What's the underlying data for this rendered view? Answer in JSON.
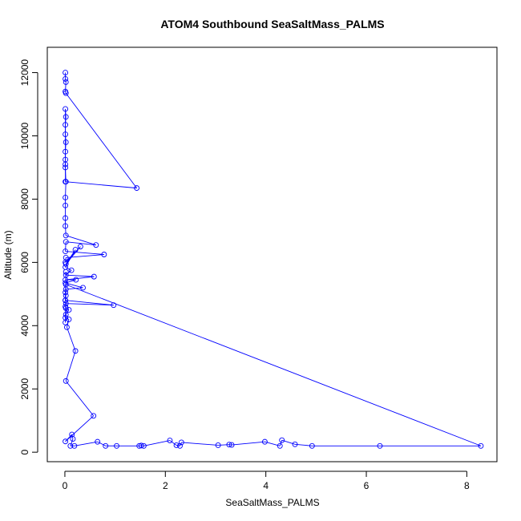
{
  "chart_data": {
    "type": "scatter",
    "title": "ATOM4 Southbound SeaSaltMass_PALMS",
    "xlabel": "SeaSaltMass_PALMS",
    "ylabel": "Altitude (m)",
    "xlim": [
      -0.35,
      8.6
    ],
    "ylim": [
      -300,
      12800
    ],
    "x_ticks": [
      0,
      2,
      4,
      6,
      8
    ],
    "y_ticks": [
      0,
      2000,
      4000,
      6000,
      8000,
      10000,
      12000
    ],
    "grid": false,
    "style": "points connected by lines",
    "colors": {
      "series": "#0000ff",
      "frame": "#000000",
      "background": "#ffffff"
    },
    "series": [
      {
        "points": [
          [
            0.01,
            12000
          ],
          [
            0.01,
            11800
          ],
          [
            0.02,
            11700
          ],
          [
            0.01,
            11400
          ],
          [
            0.02,
            11350
          ],
          [
            1.43,
            8350
          ],
          [
            0.01,
            8550
          ],
          [
            0.01,
            10850
          ],
          [
            0.02,
            10600
          ],
          [
            0.01,
            10350
          ],
          [
            0.01,
            10050
          ],
          [
            0.02,
            9800
          ],
          [
            0.01,
            9500
          ],
          [
            0.01,
            9250
          ],
          [
            0.01,
            9100
          ],
          [
            0.01,
            9000
          ],
          [
            0.02,
            8550
          ],
          [
            0.01,
            8050
          ],
          [
            0.01,
            7800
          ],
          [
            0.01,
            7400
          ],
          [
            0.01,
            7150
          ],
          [
            0.02,
            6850
          ],
          [
            0.62,
            6550
          ],
          [
            0.02,
            6650
          ],
          [
            0.01,
            6350
          ],
          [
            0.78,
            6250
          ],
          [
            0.02,
            6150
          ],
          [
            0.01,
            6000
          ],
          [
            0.31,
            6500
          ],
          [
            0.02,
            5950
          ],
          [
            0.21,
            6400
          ],
          [
            0.01,
            5850
          ],
          [
            0.13,
            5750
          ],
          [
            0.02,
            5600
          ],
          [
            0.58,
            5550
          ],
          [
            0.01,
            5450
          ],
          [
            0.22,
            5450
          ],
          [
            0.01,
            5350
          ],
          [
            0.36,
            5200
          ],
          [
            0.02,
            5150
          ],
          [
            0.01,
            5050
          ],
          [
            0.02,
            4950
          ],
          [
            0.01,
            4800
          ],
          [
            0.97,
            4650
          ],
          [
            0.02,
            4700
          ],
          [
            0.01,
            4600
          ],
          [
            0.08,
            4500
          ],
          [
            0.02,
            4350
          ],
          [
            0.01,
            4250
          ],
          [
            0.08,
            4200
          ],
          [
            0.04,
            3950
          ],
          [
            0.21,
            3200
          ],
          [
            0.02,
            2250
          ],
          [
            0.57,
            1150
          ],
          [
            0.01,
            340
          ],
          [
            0.14,
            560
          ],
          [
            0.16,
            420
          ],
          [
            0.11,
            200
          ],
          [
            0.19,
            200
          ],
          [
            0.65,
            330
          ],
          [
            0.81,
            200
          ],
          [
            1.03,
            200
          ],
          [
            1.48,
            200
          ],
          [
            1.52,
            210
          ],
          [
            1.57,
            200
          ],
          [
            2.09,
            370
          ],
          [
            2.22,
            220
          ],
          [
            2.29,
            200
          ],
          [
            2.32,
            310
          ],
          [
            3.05,
            220
          ],
          [
            3.27,
            240
          ],
          [
            3.32,
            230
          ],
          [
            3.98,
            330
          ],
          [
            4.28,
            200
          ],
          [
            4.32,
            380
          ],
          [
            4.58,
            250
          ],
          [
            4.92,
            200
          ],
          [
            6.27,
            200
          ],
          [
            8.28,
            200
          ],
          [
            0.02,
            5300
          ],
          [
            0.01,
            4800
          ],
          [
            0.02,
            5700
          ],
          [
            0.01,
            4100
          ],
          [
            0.02,
            4550
          ]
        ]
      }
    ]
  }
}
